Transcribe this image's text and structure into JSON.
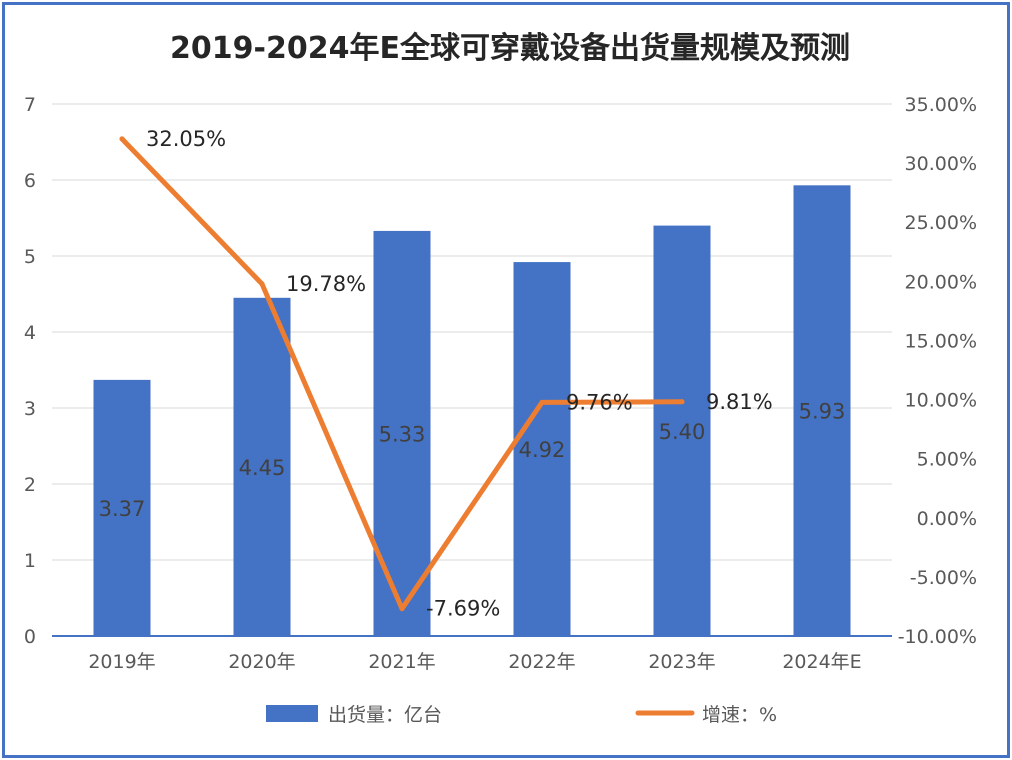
{
  "chart_data": {
    "type": "bar+line",
    "title": "2019-2024年E全球可穿戴设备出货量规模及预测",
    "categories": [
      "2019年",
      "2020年",
      "2021年",
      "2022年",
      "2023年",
      "2024年E"
    ],
    "series": [
      {
        "name": "出货量：亿台",
        "type": "bar",
        "axis": "left",
        "values": [
          3.37,
          4.45,
          5.33,
          4.92,
          5.4,
          5.93
        ],
        "labels": [
          "3.37",
          "4.45",
          "5.33",
          "4.92",
          "5.40",
          "5.93"
        ],
        "color": "#4472c4"
      },
      {
        "name": "增速：%",
        "type": "line",
        "axis": "right",
        "values": [
          32.05,
          19.78,
          -7.69,
          9.76,
          9.81,
          null
        ],
        "labels": [
          "32.05%",
          "19.78%",
          "-7.69%",
          "9.76%",
          "9.81%",
          ""
        ],
        "color": "#ed7d31"
      }
    ],
    "y_left": {
      "min": 0,
      "max": 7,
      "ticks": [
        "0",
        "1",
        "2",
        "3",
        "4",
        "5",
        "6",
        "7"
      ]
    },
    "y_right": {
      "min": -10,
      "max": 35,
      "ticks": [
        "-10.00%",
        "-5.00%",
        "0.00%",
        "5.00%",
        "10.00%",
        "15.00%",
        "20.00%",
        "25.00%",
        "30.00%",
        "35.00%"
      ]
    },
    "grid": true,
    "legend": "bottom"
  }
}
